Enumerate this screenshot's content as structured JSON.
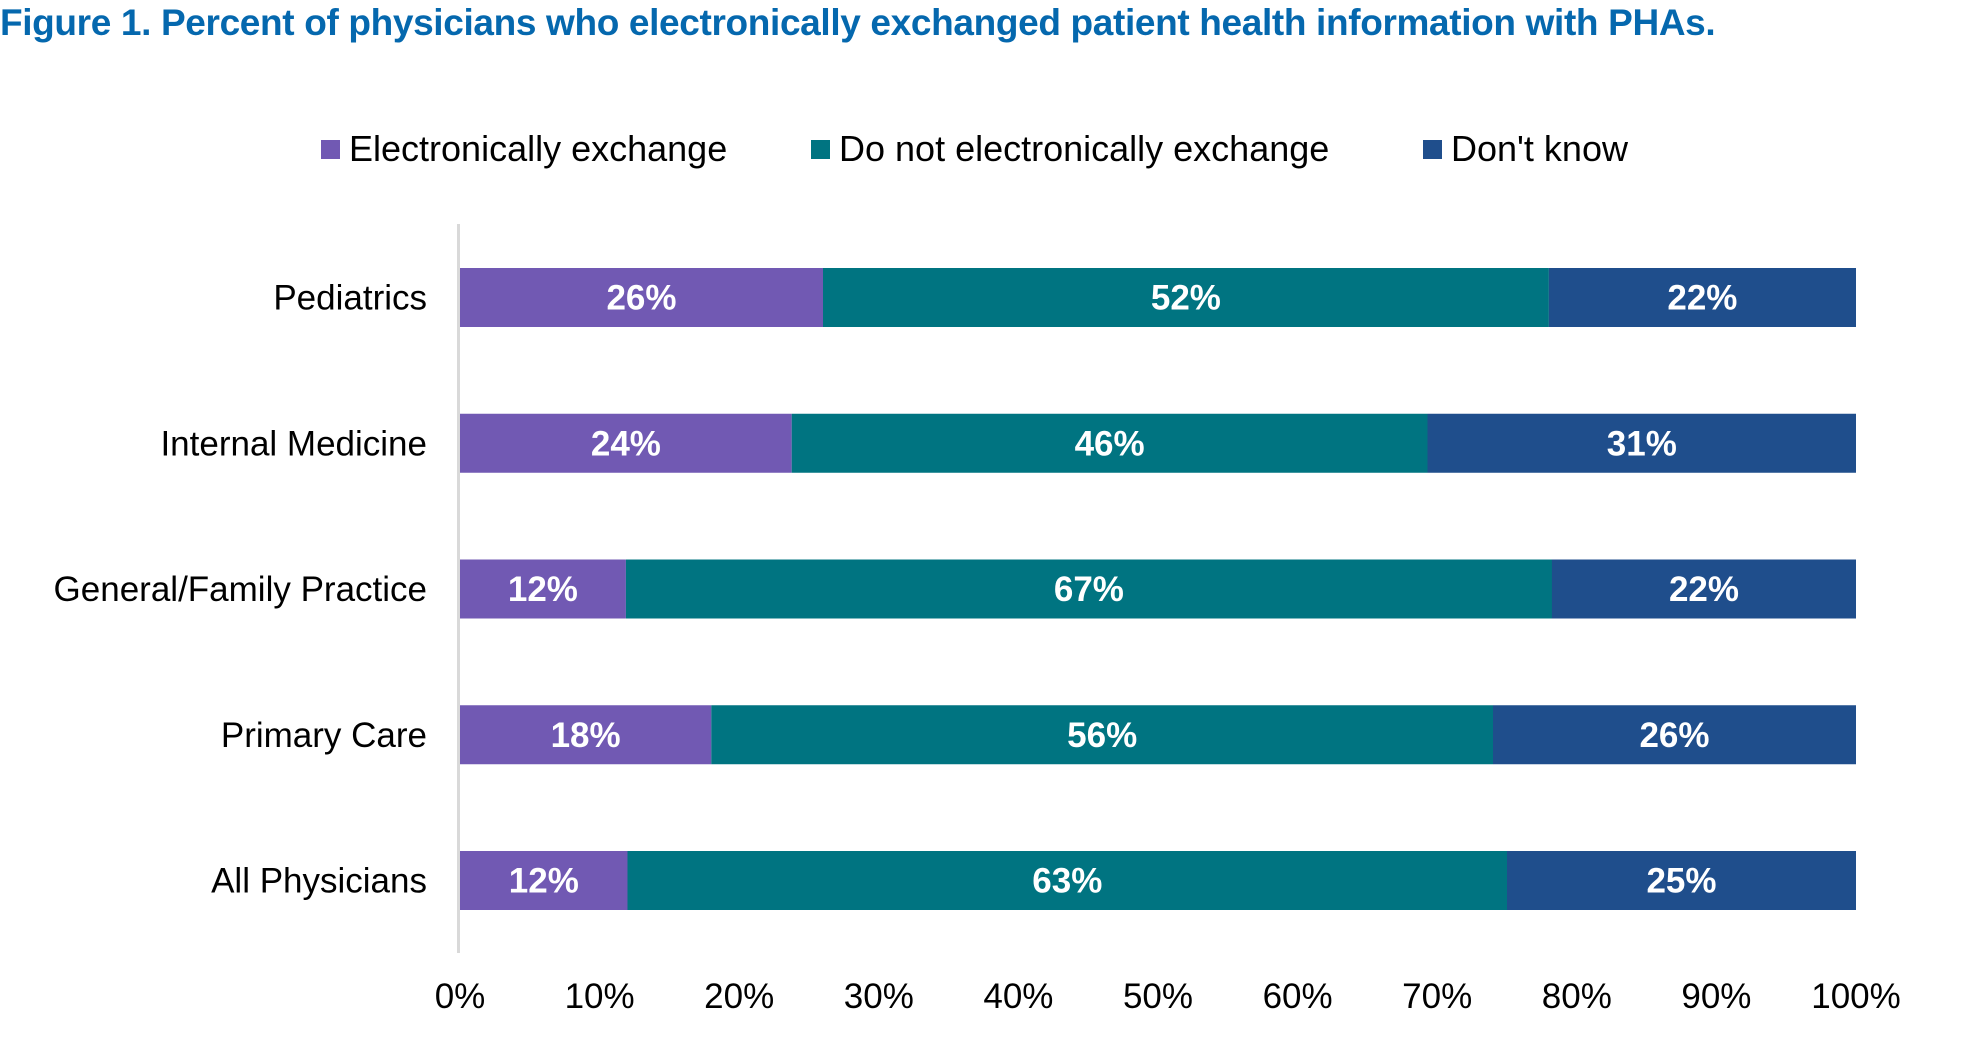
{
  "chart_data": {
    "type": "bar",
    "orientation": "horizontal",
    "stacked": "percent",
    "title": "Figure 1. Percent of physicians who electronically exchanged patient health information with PHAs.",
    "xlabel": "",
    "ylabel": "",
    "xlim": [
      0,
      100
    ],
    "x_ticks": [
      "0%",
      "10%",
      "20%",
      "30%",
      "40%",
      "50%",
      "60%",
      "70%",
      "80%",
      "90%",
      "100%"
    ],
    "grid": false,
    "legend_position": "top",
    "categories": [
      "Pediatrics",
      "Internal Medicine",
      "General/Family Practice",
      "Primary Care",
      "All Physicians"
    ],
    "series": [
      {
        "name": "Electronically exchange",
        "color": "#7159b3",
        "values": [
          26,
          24,
          12,
          18,
          12
        ]
      },
      {
        "name": "Do not electronically exchange",
        "color": "#007481",
        "values": [
          52,
          46,
          67,
          56,
          63
        ]
      },
      {
        "name": "Don't know",
        "color": "#1f4e8c",
        "values": [
          22,
          31,
          22,
          26,
          25
        ]
      }
    ],
    "value_suffix": "%"
  },
  "colors": {
    "title": "#0568ae",
    "axis_line": "#d9d9d9"
  }
}
